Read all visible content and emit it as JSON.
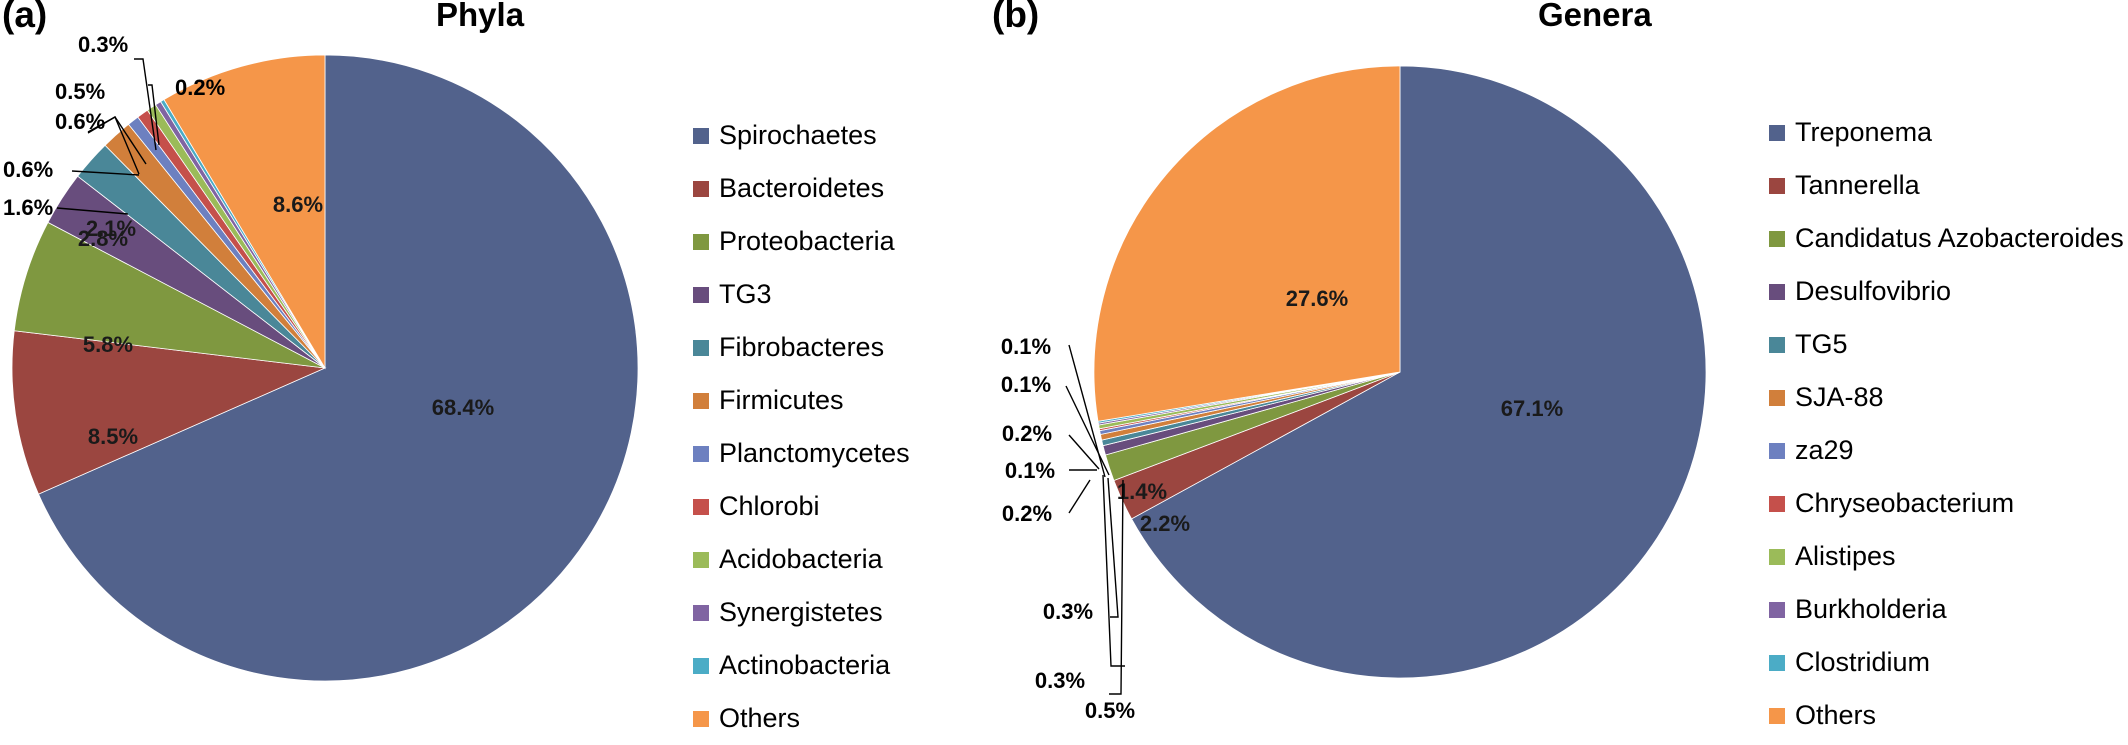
{
  "chart_data": [
    {
      "panel_label": "(a)",
      "title": "Phyla",
      "type": "pie",
      "legend_position": "right",
      "start_angle_deg": 0,
      "slices": [
        {
          "name": "Spirochaetes",
          "value": 68.4,
          "label": "68.4%",
          "color": "#52628c"
        },
        {
          "name": "Bacteroidetes",
          "value": 8.5,
          "label": "8.5%",
          "color": "#9b4640"
        },
        {
          "name": "Proteobacteria",
          "value": 5.8,
          "label": "5.8%",
          "color": "#7f9840"
        },
        {
          "name": "TG3",
          "value": 2.8,
          "label": "2.8%",
          "color": "#684d7d"
        },
        {
          "name": "Fibrobacteres",
          "value": 2.1,
          "label": "2.1%",
          "color": "#4a8798"
        },
        {
          "name": "Firmicutes",
          "value": 1.6,
          "label": "1.6%",
          "color": "#d17f3b"
        },
        {
          "name": "Planctomycetes",
          "value": 0.6,
          "label": "0.6%",
          "color": "#6d80c0"
        },
        {
          "name": "Chlorobi",
          "value": 0.6,
          "label": "0.6%",
          "color": "#c5504b"
        },
        {
          "name": "Acidobacteria",
          "value": 0.5,
          "label": "0.5%",
          "color": "#9bbb59"
        },
        {
          "name": "Synergistetes",
          "value": 0.3,
          "label": "0.3%",
          "color": "#8064a2"
        },
        {
          "name": "Actinobacteria",
          "value": 0.2,
          "label": "0.2%",
          "color": "#4bacc6"
        },
        {
          "name": "Others",
          "value": 8.6,
          "label": "8.6%",
          "color": "#f59649"
        }
      ]
    },
    {
      "panel_label": "(b)",
      "title": "Genera",
      "type": "pie",
      "legend_position": "right",
      "start_angle_deg": 0,
      "slices": [
        {
          "name": "Treponema",
          "value": 67.1,
          "label": "67.1%",
          "color": "#52628c"
        },
        {
          "name": "Tannerella",
          "value": 2.2,
          "label": "2.2%",
          "color": "#9b4640"
        },
        {
          "name": "Candidatus Azobacteroides",
          "value": 1.4,
          "label": "1.4%",
          "color": "#7f9840"
        },
        {
          "name": "Desulfovibrio",
          "value": 0.5,
          "label": "0.5%",
          "color": "#684d7d"
        },
        {
          "name": "TG5",
          "value": 0.3,
          "label": "0.3%",
          "color": "#4a8798"
        },
        {
          "name": "SJA-88",
          "value": 0.3,
          "label": "0.3%",
          "color": "#d17f3b"
        },
        {
          "name": "za29",
          "value": 0.2,
          "label": "0.2%",
          "color": "#6d80c0"
        },
        {
          "name": "Chryseobacterium",
          "value": 0.1,
          "label": "0.1%",
          "color": "#c5504b"
        },
        {
          "name": "Alistipes",
          "value": 0.2,
          "label": "0.2%",
          "color": "#9bbb59"
        },
        {
          "name": "Burkholderia",
          "value": 0.1,
          "label": "0.1%",
          "color": "#8064a2"
        },
        {
          "name": "Clostridium",
          "value": 0.1,
          "label": "0.1%",
          "color": "#4bacc6"
        },
        {
          "name": "Others",
          "value": 27.6,
          "label": "27.6%",
          "color": "#f59649"
        }
      ]
    }
  ]
}
